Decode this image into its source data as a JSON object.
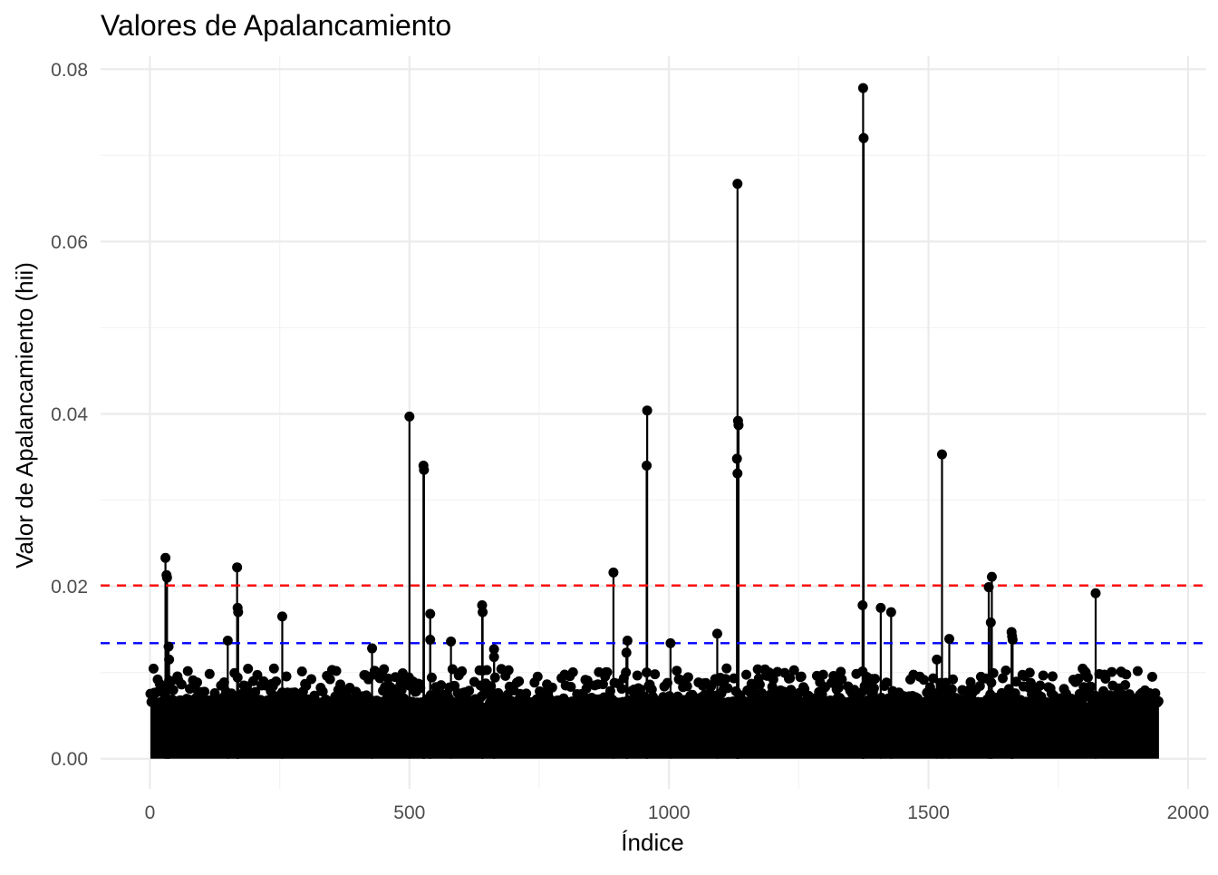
{
  "chart_data": {
    "type": "scatter",
    "title": "Valores de Apalancamiento",
    "xlabel": "Índice",
    "ylabel": "Valor de Apalancamiento (hii)",
    "xlim": [
      -95,
      2035
    ],
    "ylim": [
      -0.0035,
      0.0815
    ],
    "x_ticks": [
      0,
      500,
      1000,
      1500,
      2000
    ],
    "x_tick_labels": [
      "0",
      "500",
      "1000",
      "1500",
      "2000"
    ],
    "y_ticks": [
      0,
      0.02,
      0.04,
      0.06,
      0.08
    ],
    "y_tick_labels": [
      "0.00",
      "0.02",
      "0.04",
      "0.06",
      "0.08"
    ],
    "grid": true,
    "n_points": 1944,
    "baseline_max": 0.0065,
    "reference_lines": [
      {
        "value": 0.0201,
        "color": "#ff0000",
        "style": "dashed"
      },
      {
        "value": 0.0134,
        "color": "#0000ff",
        "style": "dashed"
      }
    ],
    "point_color": "#000000",
    "highlight_points": [
      {
        "x": 30,
        "y": 0.0233
      },
      {
        "x": 32,
        "y": 0.0213
      },
      {
        "x": 33,
        "y": 0.021
      },
      {
        "x": 36,
        "y": 0.013
      },
      {
        "x": 37,
        "y": 0.0115
      },
      {
        "x": 150,
        "y": 0.0137
      },
      {
        "x": 168,
        "y": 0.0222
      },
      {
        "x": 169,
        "y": 0.0175
      },
      {
        "x": 170,
        "y": 0.017
      },
      {
        "x": 255,
        "y": 0.0165
      },
      {
        "x": 428,
        "y": 0.0128
      },
      {
        "x": 500,
        "y": 0.0397
      },
      {
        "x": 527,
        "y": 0.034
      },
      {
        "x": 528,
        "y": 0.0335
      },
      {
        "x": 540,
        "y": 0.0168
      },
      {
        "x": 540,
        "y": 0.0138
      },
      {
        "x": 580,
        "y": 0.0136
      },
      {
        "x": 640,
        "y": 0.0178
      },
      {
        "x": 641,
        "y": 0.017
      },
      {
        "x": 663,
        "y": 0.0127
      },
      {
        "x": 663,
        "y": 0.0118
      },
      {
        "x": 893,
        "y": 0.0216
      },
      {
        "x": 920,
        "y": 0.0137
      },
      {
        "x": 918,
        "y": 0.0123
      },
      {
        "x": 958,
        "y": 0.0404
      },
      {
        "x": 957,
        "y": 0.034
      },
      {
        "x": 1003,
        "y": 0.0134
      },
      {
        "x": 1093,
        "y": 0.0145
      },
      {
        "x": 1132,
        "y": 0.0667
      },
      {
        "x": 1133,
        "y": 0.0392
      },
      {
        "x": 1134,
        "y": 0.0387
      },
      {
        "x": 1131,
        "y": 0.0348
      },
      {
        "x": 1132,
        "y": 0.0331
      },
      {
        "x": 1374,
        "y": 0.0778
      },
      {
        "x": 1375,
        "y": 0.072
      },
      {
        "x": 1373,
        "y": 0.0178
      },
      {
        "x": 1408,
        "y": 0.0175
      },
      {
        "x": 1428,
        "y": 0.017
      },
      {
        "x": 1526,
        "y": 0.0353
      },
      {
        "x": 1540,
        "y": 0.0139
      },
      {
        "x": 1516,
        "y": 0.0115
      },
      {
        "x": 1616,
        "y": 0.0199
      },
      {
        "x": 1622,
        "y": 0.0211
      },
      {
        "x": 1620,
        "y": 0.0158
      },
      {
        "x": 1660,
        "y": 0.0147
      },
      {
        "x": 1661,
        "y": 0.0142
      },
      {
        "x": 1662,
        "y": 0.0138
      },
      {
        "x": 1822,
        "y": 0.0192
      }
    ]
  }
}
